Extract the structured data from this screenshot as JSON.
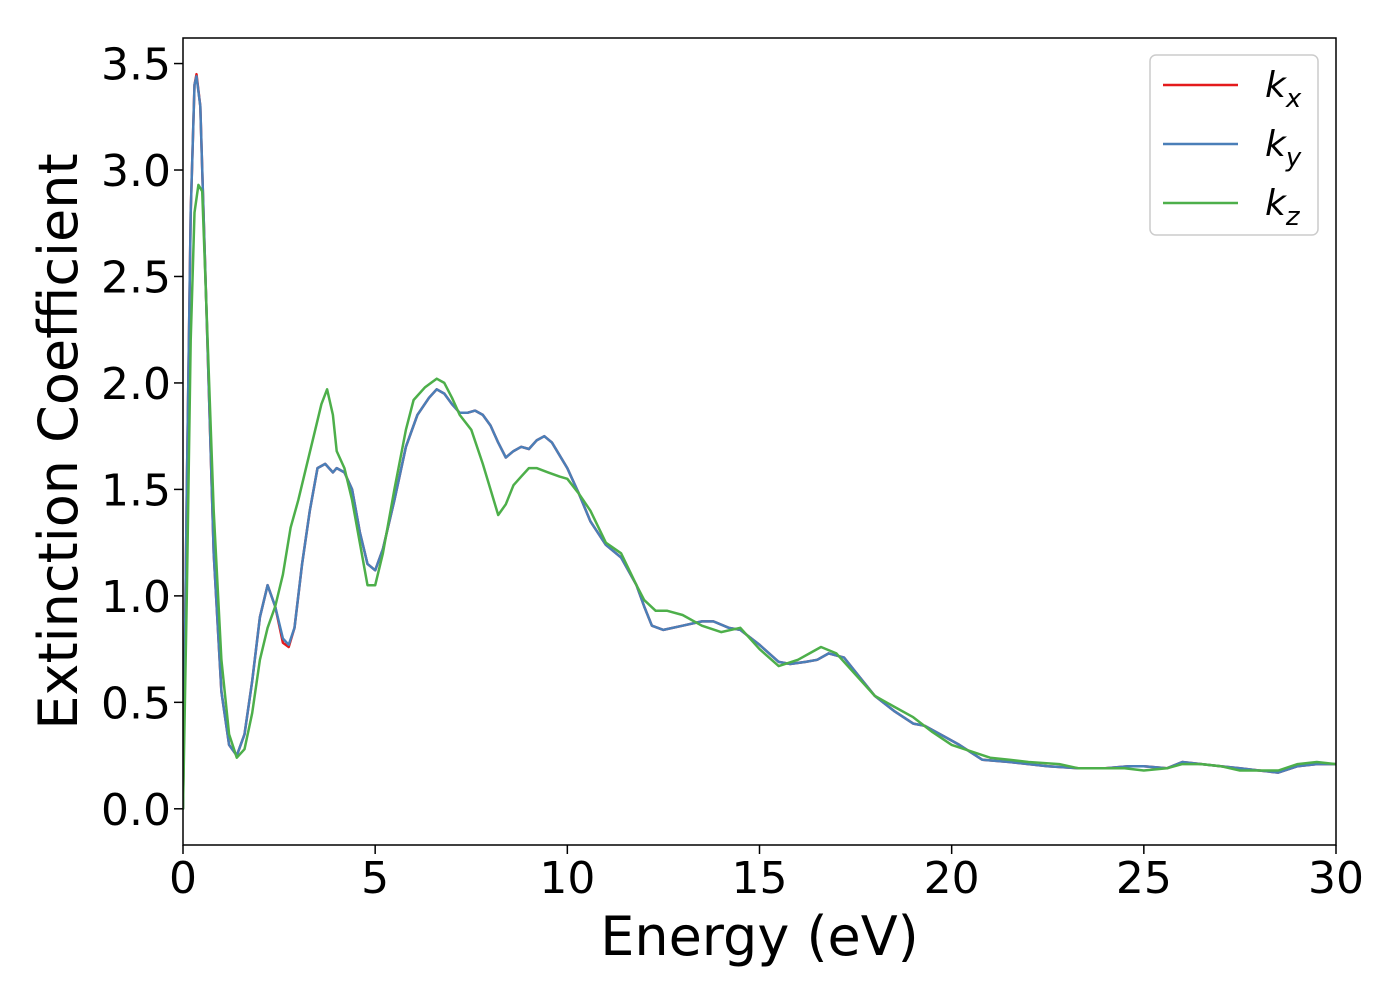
{
  "chart_data": {
    "type": "line",
    "title": "",
    "xlabel": "Energy (eV)",
    "ylabel": "Extinction Coefficient",
    "xlim": [
      0,
      30
    ],
    "ylim": [
      -0.17,
      3.62
    ],
    "xticks": [
      0,
      5,
      10,
      15,
      20,
      25,
      30
    ],
    "xtick_labels": [
      "0",
      "5",
      "10",
      "15",
      "20",
      "25",
      "30"
    ],
    "yticks": [
      0.0,
      0.5,
      1.0,
      1.5,
      2.0,
      2.5,
      3.0,
      3.5
    ],
    "ytick_labels": [
      "0.0",
      "0.5",
      "1.0",
      "1.5",
      "2.0",
      "2.5",
      "3.0",
      "3.5"
    ],
    "grid": false,
    "legend_position": "top-right",
    "series": [
      {
        "name": "k_x",
        "legend_main": "k",
        "legend_sub": "x",
        "color": "#e41a1c",
        "x": [
          0,
          0.1,
          0.2,
          0.3,
          0.35,
          0.45,
          0.6,
          0.8,
          1.0,
          1.2,
          1.4,
          1.6,
          1.8,
          2.0,
          2.2,
          2.4,
          2.6,
          2.75,
          2.9,
          3.1,
          3.3,
          3.5,
          3.7,
          3.8,
          3.9,
          4.0,
          4.2,
          4.4,
          4.6,
          4.8,
          5.0,
          5.2,
          5.5,
          5.8,
          6.1,
          6.4,
          6.6,
          6.8,
          7.0,
          7.2,
          7.4,
          7.6,
          7.8,
          8.0,
          8.2,
          8.4,
          8.6,
          8.8,
          9.0,
          9.2,
          9.4,
          9.6,
          9.8,
          10.0,
          10.3,
          10.6,
          11.0,
          11.4,
          11.8,
          12.0,
          12.2,
          12.5,
          13.0,
          13.5,
          13.8,
          14.2,
          14.5,
          15.0,
          15.5,
          15.8,
          16.2,
          16.5,
          16.8,
          17.2,
          17.6,
          18.0,
          18.5,
          19.0,
          19.3,
          19.8,
          20.2,
          20.8,
          21.5,
          22.5,
          23.3,
          24.0,
          24.6,
          25.0,
          25.6,
          26.0,
          26.5,
          27.0,
          27.5,
          28.0,
          28.5,
          29.0,
          29.5,
          30.0
        ],
        "y": [
          0.0,
          1.5,
          2.8,
          3.4,
          3.45,
          3.3,
          2.4,
          1.2,
          0.55,
          0.3,
          0.25,
          0.35,
          0.6,
          0.9,
          1.05,
          0.95,
          0.78,
          0.76,
          0.85,
          1.15,
          1.4,
          1.6,
          1.62,
          1.6,
          1.58,
          1.6,
          1.58,
          1.5,
          1.3,
          1.15,
          1.12,
          1.22,
          1.45,
          1.7,
          1.85,
          1.93,
          1.97,
          1.95,
          1.9,
          1.86,
          1.86,
          1.87,
          1.85,
          1.8,
          1.72,
          1.65,
          1.68,
          1.7,
          1.69,
          1.73,
          1.75,
          1.72,
          1.66,
          1.6,
          1.48,
          1.35,
          1.24,
          1.18,
          1.05,
          0.95,
          0.86,
          0.84,
          0.86,
          0.88,
          0.88,
          0.85,
          0.84,
          0.77,
          0.69,
          0.68,
          0.69,
          0.7,
          0.73,
          0.71,
          0.62,
          0.53,
          0.46,
          0.4,
          0.39,
          0.34,
          0.3,
          0.23,
          0.22,
          0.2,
          0.19,
          0.19,
          0.2,
          0.2,
          0.19,
          0.22,
          0.21,
          0.2,
          0.19,
          0.18,
          0.17,
          0.2,
          0.21,
          0.21
        ]
      },
      {
        "name": "k_y",
        "legend_main": "k",
        "legend_sub": "y",
        "color": "#4a7fb8",
        "x": [
          0,
          0.1,
          0.2,
          0.3,
          0.35,
          0.45,
          0.6,
          0.8,
          1.0,
          1.2,
          1.4,
          1.6,
          1.8,
          2.0,
          2.2,
          2.4,
          2.6,
          2.75,
          2.9,
          3.1,
          3.3,
          3.5,
          3.7,
          3.8,
          3.9,
          4.0,
          4.2,
          4.4,
          4.6,
          4.8,
          5.0,
          5.2,
          5.5,
          5.8,
          6.1,
          6.4,
          6.6,
          6.8,
          7.0,
          7.2,
          7.4,
          7.6,
          7.8,
          8.0,
          8.2,
          8.4,
          8.6,
          8.8,
          9.0,
          9.2,
          9.4,
          9.6,
          9.8,
          10.0,
          10.3,
          10.6,
          11.0,
          11.4,
          11.8,
          12.0,
          12.2,
          12.5,
          13.0,
          13.5,
          13.8,
          14.2,
          14.5,
          15.0,
          15.5,
          15.8,
          16.2,
          16.5,
          16.8,
          17.2,
          17.6,
          18.0,
          18.5,
          19.0,
          19.3,
          19.8,
          20.2,
          20.8,
          21.5,
          22.5,
          23.3,
          24.0,
          24.6,
          25.0,
          25.6,
          26.0,
          26.5,
          27.0,
          27.5,
          28.0,
          28.5,
          29.0,
          29.5,
          30.0
        ],
        "y": [
          0.0,
          1.5,
          2.8,
          3.4,
          3.44,
          3.3,
          2.4,
          1.2,
          0.55,
          0.3,
          0.25,
          0.35,
          0.6,
          0.9,
          1.05,
          0.95,
          0.8,
          0.77,
          0.85,
          1.15,
          1.4,
          1.6,
          1.62,
          1.6,
          1.58,
          1.6,
          1.58,
          1.5,
          1.3,
          1.15,
          1.12,
          1.22,
          1.45,
          1.7,
          1.85,
          1.93,
          1.97,
          1.95,
          1.9,
          1.86,
          1.86,
          1.87,
          1.85,
          1.8,
          1.72,
          1.65,
          1.68,
          1.7,
          1.69,
          1.73,
          1.75,
          1.72,
          1.66,
          1.6,
          1.48,
          1.35,
          1.24,
          1.18,
          1.05,
          0.95,
          0.86,
          0.84,
          0.86,
          0.88,
          0.88,
          0.85,
          0.84,
          0.77,
          0.69,
          0.68,
          0.69,
          0.7,
          0.73,
          0.71,
          0.62,
          0.53,
          0.46,
          0.4,
          0.39,
          0.34,
          0.3,
          0.23,
          0.22,
          0.2,
          0.19,
          0.19,
          0.2,
          0.2,
          0.19,
          0.22,
          0.21,
          0.2,
          0.19,
          0.18,
          0.17,
          0.2,
          0.21,
          0.21
        ]
      },
      {
        "name": "k_z",
        "legend_main": "k",
        "legend_sub": "z",
        "color": "#4daf4a",
        "x": [
          0,
          0.1,
          0.2,
          0.3,
          0.4,
          0.5,
          0.6,
          0.8,
          1.0,
          1.2,
          1.4,
          1.6,
          1.8,
          2.0,
          2.2,
          2.4,
          2.6,
          2.8,
          3.0,
          3.2,
          3.4,
          3.6,
          3.75,
          3.9,
          4.0,
          4.2,
          4.4,
          4.6,
          4.8,
          5.0,
          5.2,
          5.5,
          5.8,
          6.0,
          6.3,
          6.6,
          6.8,
          7.0,
          7.2,
          7.5,
          7.8,
          8.0,
          8.2,
          8.4,
          8.6,
          8.8,
          9.0,
          9.2,
          9.5,
          9.8,
          10.0,
          10.3,
          10.6,
          11.0,
          11.4,
          11.8,
          12.0,
          12.3,
          12.6,
          13.0,
          13.5,
          14.0,
          14.5,
          15.0,
          15.5,
          16.0,
          16.3,
          16.6,
          17.0,
          17.5,
          18.0,
          18.5,
          19.0,
          19.5,
          20.0,
          20.5,
          21.0,
          21.5,
          22.0,
          22.8,
          23.3,
          24.0,
          24.5,
          25.0,
          25.6,
          26.0,
          26.5,
          27.0,
          27.5,
          28.0,
          28.5,
          29.0,
          29.5,
          30.0
        ],
        "y": [
          0.0,
          1.0,
          2.2,
          2.8,
          2.93,
          2.9,
          2.4,
          1.4,
          0.7,
          0.35,
          0.24,
          0.28,
          0.45,
          0.7,
          0.85,
          0.95,
          1.1,
          1.32,
          1.45,
          1.6,
          1.75,
          1.9,
          1.97,
          1.85,
          1.68,
          1.6,
          1.45,
          1.25,
          1.05,
          1.05,
          1.2,
          1.5,
          1.78,
          1.92,
          1.98,
          2.02,
          2.0,
          1.93,
          1.85,
          1.78,
          1.62,
          1.5,
          1.38,
          1.43,
          1.52,
          1.56,
          1.6,
          1.6,
          1.58,
          1.56,
          1.55,
          1.48,
          1.4,
          1.25,
          1.2,
          1.05,
          0.98,
          0.93,
          0.93,
          0.91,
          0.86,
          0.83,
          0.85,
          0.75,
          0.67,
          0.7,
          0.73,
          0.76,
          0.73,
          0.63,
          0.53,
          0.48,
          0.43,
          0.36,
          0.3,
          0.27,
          0.24,
          0.23,
          0.22,
          0.21,
          0.19,
          0.19,
          0.19,
          0.18,
          0.19,
          0.21,
          0.21,
          0.2,
          0.18,
          0.18,
          0.18,
          0.21,
          0.22,
          0.21
        ]
      }
    ]
  }
}
